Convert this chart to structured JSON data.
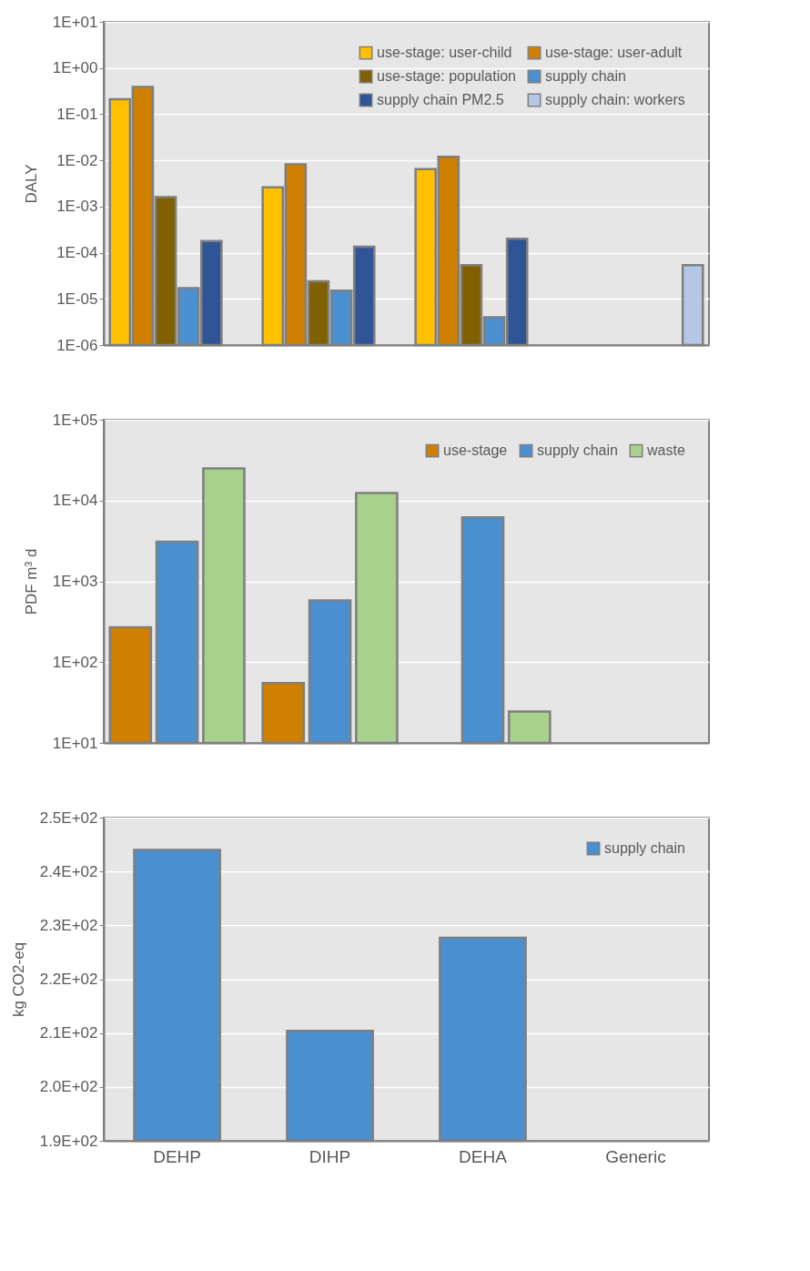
{
  "chart_data": [
    {
      "type": "bar",
      "ylabel": "DALY",
      "categories": [
        null,
        null,
        null,
        null
      ],
      "log": true,
      "ylim": [
        1e-06,
        10
      ],
      "yticks": [
        {
          "value": 1e-06,
          "label": "1E-06"
        },
        {
          "value": 1e-05,
          "label": "1E-05"
        },
        {
          "value": 0.0001,
          "label": "1E-04"
        },
        {
          "value": 0.001,
          "label": "1E-03"
        },
        {
          "value": 0.01,
          "label": "1E-02"
        },
        {
          "value": 0.1,
          "label": "1E-01"
        },
        {
          "value": 1,
          "label": "1E+00"
        },
        {
          "value": 10,
          "label": "1E+01"
        }
      ],
      "grid": "y",
      "legend": "top right",
      "series": [
        {
          "name": "use-stage: user-child",
          "color": "#ffc000",
          "values": [
            0.21,
            0.0026,
            0.0065,
            null
          ]
        },
        {
          "name": "use-stage: user-adult",
          "color": "#d08000",
          "values": [
            0.39,
            0.0082,
            0.012,
            null
          ]
        },
        {
          "name": "use-stage: population",
          "color": "#806000",
          "values": [
            0.0016,
            2.4e-05,
            5.4e-05,
            null
          ]
        },
        {
          "name": "supply chain",
          "color": "#4a8fd0",
          "values": [
            1.7e-05,
            1.5e-05,
            4e-06,
            null
          ]
        },
        {
          "name": "supply chain PM2.5",
          "color": "#2f5597",
          "values": [
            0.00018,
            0.000135,
            0.0002,
            null
          ]
        },
        {
          "name": "supply chain: workers",
          "color": "#b4c7e7",
          "values": [
            null,
            null,
            null,
            5.4e-05
          ]
        }
      ]
    },
    {
      "type": "bar",
      "ylabel": "PDF m³ d",
      "categories": [
        null,
        null,
        null,
        null
      ],
      "log": true,
      "ylim": [
        10,
        100000
      ],
      "yticks": [
        {
          "value": 10,
          "label": "1E+01"
        },
        {
          "value": 100,
          "label": "1E+02"
        },
        {
          "value": 1000,
          "label": "1E+03"
        },
        {
          "value": 10000,
          "label": "1E+04"
        },
        {
          "value": 100000,
          "label": "1E+05"
        }
      ],
      "grid": "y",
      "legend": "top right",
      "series": [
        {
          "name": "use-stage",
          "color": "#d08000",
          "values": [
            270,
            55,
            null,
            null
          ]
        },
        {
          "name": "supply chain",
          "color": "#4a8fd0",
          "values": [
            3100,
            580,
            6200,
            null
          ]
        },
        {
          "name": "waste",
          "color": "#a9d18e",
          "values": [
            25000,
            12400,
            24.5,
            null
          ]
        }
      ]
    },
    {
      "type": "bar",
      "ylabel": "kg CO2-eq",
      "categories": [
        "DEHP",
        "DIHP",
        "DEHA",
        "Generic"
      ],
      "ylim": [
        190,
        250
      ],
      "yticks": [
        {
          "value": 190,
          "label": "1.9E+02"
        },
        {
          "value": 200,
          "label": "2.0E+02"
        },
        {
          "value": 210,
          "label": "2.1E+02"
        },
        {
          "value": 220,
          "label": "2.2E+02"
        },
        {
          "value": 230,
          "label": "2.3E+02"
        },
        {
          "value": 240,
          "label": "2.4E+02"
        },
        {
          "value": 250,
          "label": "2.5E+02"
        }
      ],
      "grid": "y",
      "legend": "top right",
      "series": [
        {
          "name": "supply chain",
          "color": "#4a8fd0",
          "values": [
            244,
            210.4,
            227.7,
            null
          ]
        }
      ]
    }
  ]
}
